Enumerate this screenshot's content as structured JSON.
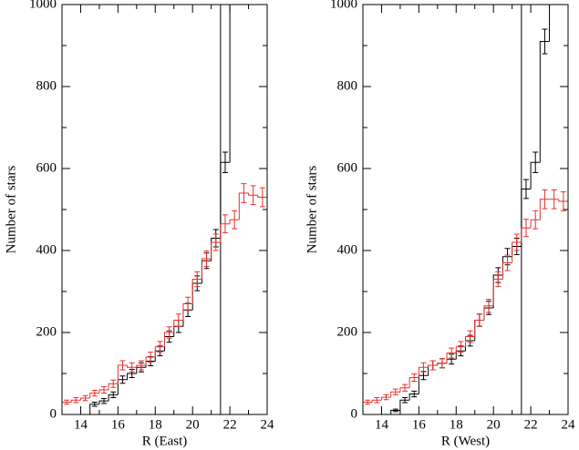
{
  "chart_data": [
    {
      "type": "histogram",
      "xlabel": "R (East)",
      "ylabel": "Number of stars",
      "bins": [
        13,
        13.5,
        14,
        14.5,
        15,
        15.5,
        16,
        16.5,
        17,
        17.5,
        18,
        18.5,
        19,
        19.5,
        20,
        20.5,
        21,
        21.5,
        22,
        22.5,
        23,
        23.5,
        24
      ],
      "xlim": [
        13,
        24
      ],
      "ylim": [
        0,
        1000
      ],
      "xticks": [
        14,
        16,
        18,
        20,
        22,
        24
      ],
      "xminorticks": [
        13,
        15,
        17,
        19,
        21,
        23
      ],
      "yticks": [
        0,
        200,
        400,
        600,
        800,
        1000
      ],
      "yminorticks": [
        100,
        300,
        500,
        700,
        900
      ],
      "vline": 21.5,
      "series": [
        {
          "color": "#000000",
          "values": [
            null,
            null,
            null,
            25,
            33,
            48,
            85,
            100,
            115,
            130,
            155,
            190,
            215,
            255,
            320,
            375,
            430,
            615,
            1100,
            null,
            null,
            null
          ],
          "errors": [
            null,
            null,
            null,
            5,
            6,
            7,
            9,
            10,
            11,
            11,
            12,
            14,
            15,
            16,
            18,
            19,
            21,
            25,
            33,
            null,
            null,
            null
          ]
        },
        {
          "color": "#e8302c",
          "values": [
            30,
            35,
            40,
            52,
            60,
            75,
            120,
            115,
            120,
            140,
            165,
            200,
            230,
            270,
            330,
            380,
            420,
            465,
            475,
            540,
            535,
            530
          ],
          "errors": [
            5,
            6,
            6,
            7,
            8,
            9,
            11,
            11,
            11,
            12,
            13,
            14,
            15,
            16,
            18,
            19,
            20,
            22,
            22,
            23,
            23,
            23
          ]
        }
      ]
    },
    {
      "type": "histogram",
      "xlabel": "R (West)",
      "ylabel": "Number of stars",
      "bins": [
        13,
        13.5,
        14,
        14.5,
        15,
        15.5,
        16,
        16.5,
        17,
        17.5,
        18,
        18.5,
        19,
        19.5,
        20,
        20.5,
        21,
        21.5,
        22,
        22.5,
        23,
        23.5,
        24
      ],
      "xlim": [
        13,
        24
      ],
      "ylim": [
        0,
        1000
      ],
      "xticks": [
        14,
        16,
        18,
        20,
        22,
        24
      ],
      "xminorticks": [
        13,
        15,
        17,
        19,
        21,
        23
      ],
      "yticks": [
        0,
        200,
        400,
        600,
        800,
        1000
      ],
      "yminorticks": [
        100,
        300,
        500,
        700,
        900
      ],
      "vline": 21.5,
      "series": [
        {
          "color": "#000000",
          "values": [
            null,
            null,
            null,
            10,
            35,
            50,
            95,
            120,
            125,
            135,
            155,
            180,
            230,
            260,
            340,
            385,
            410,
            550,
            615,
            910,
            1100,
            null
          ],
          "errors": [
            null,
            null,
            null,
            3,
            6,
            7,
            10,
            11,
            11,
            12,
            12,
            13,
            15,
            16,
            18,
            20,
            20,
            23,
            25,
            30,
            33,
            null
          ]
        },
        {
          "color": "#e8302c",
          "values": [
            30,
            35,
            42,
            55,
            65,
            90,
            115,
            120,
            125,
            150,
            165,
            190,
            230,
            265,
            330,
            370,
            420,
            455,
            475,
            525,
            525,
            520
          ],
          "errors": [
            5,
            6,
            6,
            7,
            8,
            9,
            11,
            11,
            11,
            12,
            13,
            14,
            15,
            16,
            18,
            19,
            20,
            21,
            22,
            23,
            23,
            23
          ]
        }
      ]
    }
  ]
}
